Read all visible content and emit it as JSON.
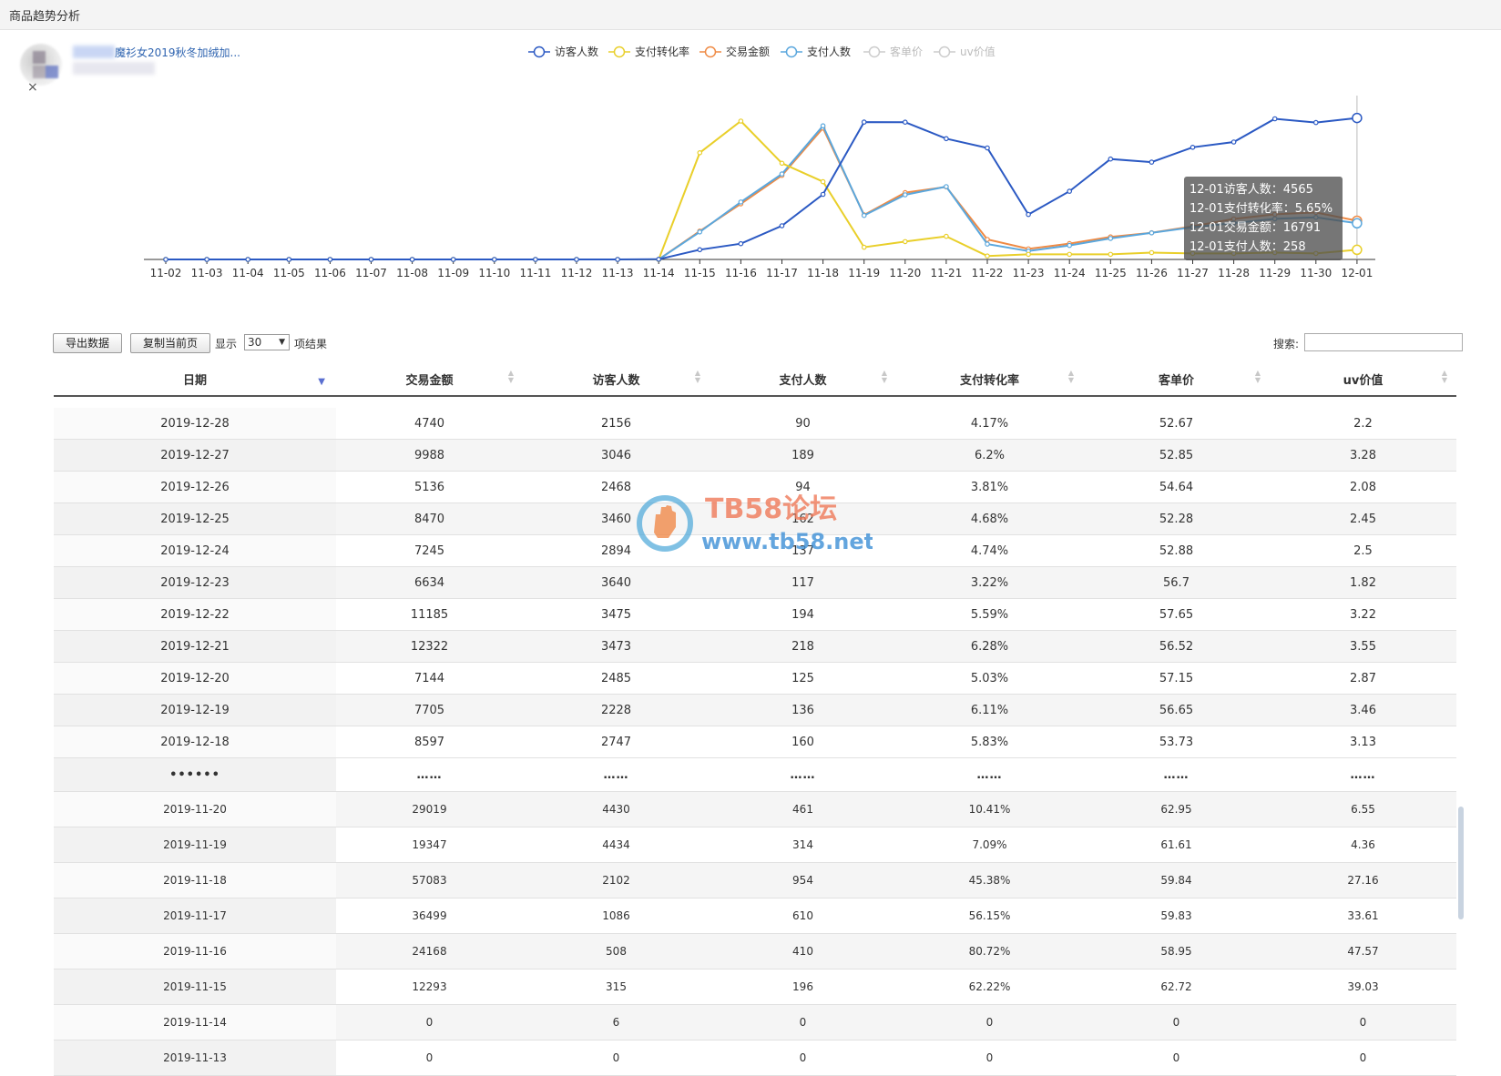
{
  "window": {
    "title": "商品趋势分析"
  },
  "product": {
    "name": "魔衫女2019秋冬加绒加...",
    "close_label": "×"
  },
  "legend": [
    {
      "label": "访客人数",
      "color": "#2b59c3",
      "active": true
    },
    {
      "label": "支付转化率",
      "color": "#e9cf2a",
      "active": true
    },
    {
      "label": "交易金额",
      "color": "#ef8a44",
      "active": true
    },
    {
      "label": "支付人数",
      "color": "#5aa7dd",
      "active": true
    },
    {
      "label": "客单价",
      "color": "#cccccc",
      "active": false
    },
    {
      "label": "uv价值",
      "color": "#cccccc",
      "active": false
    }
  ],
  "chart_data": {
    "type": "line",
    "categories": [
      "11-02",
      "11-03",
      "11-04",
      "11-05",
      "11-06",
      "11-07",
      "11-08",
      "11-09",
      "11-10",
      "11-11",
      "11-12",
      "11-13",
      "11-14",
      "11-15",
      "11-16",
      "11-17",
      "11-18",
      "11-19",
      "11-20",
      "11-21",
      "11-22",
      "11-23",
      "11-24",
      "11-25",
      "11-26",
      "11-27",
      "11-28",
      "11-29",
      "11-30",
      "12-01"
    ],
    "y_axis_visible": false,
    "series": [
      {
        "name": "访客人数",
        "color": "#2b59c3",
        "scale": 5200,
        "values": [
          0,
          0,
          0,
          0,
          0,
          0,
          0,
          0,
          0,
          0,
          0,
          0,
          6,
          315,
          508,
          1086,
          2102,
          4434,
          4430,
          3900,
          3600,
          1450,
          2200,
          3240,
          3140,
          3620,
          3790,
          4540,
          4420,
          4565
        ]
      },
      {
        "name": "支付转化率",
        "color": "#e9cf2a",
        "scale": 94,
        "values": [
          0,
          0,
          0,
          0,
          0,
          0,
          0,
          0,
          0,
          0,
          0,
          0,
          0,
          62.22,
          80.72,
          56.15,
          45.38,
          7.09,
          10.41,
          13.5,
          2,
          3,
          3,
          3,
          4,
          3.5,
          3.5,
          4,
          3.5,
          5.65
        ]
      },
      {
        "name": "交易金额",
        "color": "#ef8a44",
        "scale": 70000,
        "values": [
          0,
          0,
          0,
          0,
          0,
          0,
          0,
          0,
          0,
          0,
          0,
          0,
          0,
          12293,
          24168,
          36499,
          57083,
          19347,
          29019,
          31500,
          8700,
          4600,
          6900,
          9800,
          11600,
          14400,
          17600,
          19600,
          20400,
          16791
        ]
      },
      {
        "name": "支付人数",
        "color": "#5aa7dd",
        "scale": 1150,
        "values": [
          0,
          0,
          0,
          0,
          0,
          0,
          0,
          0,
          0,
          0,
          0,
          0,
          0,
          196,
          410,
          610,
          954,
          314,
          461,
          520,
          110,
          60,
          100,
          150,
          190,
          230,
          260,
          290,
          300,
          258
        ]
      }
    ],
    "tooltip": {
      "lines": [
        "12-01访客人数：4565",
        "12-01支付转化率：5.65%",
        "12-01交易金额：16791",
        "12-01支付人数：258"
      ]
    }
  },
  "toolbar": {
    "export_label": "导出数据",
    "copy_label": "复制当前页",
    "show_label": "显示",
    "page_size": "30",
    "results_label": "项结果",
    "search_label": "搜索:"
  },
  "table": {
    "headers": [
      "日期",
      "交易金额",
      "访客人数",
      "支付人数",
      "支付转化率",
      "客单价",
      "uv价值"
    ],
    "rows_top": [
      [
        "2019-12-28",
        "4740",
        "2156",
        "90",
        "4.17%",
        "52.67",
        "2.2"
      ],
      [
        "2019-12-27",
        "9988",
        "3046",
        "189",
        "6.2%",
        "52.85",
        "3.28"
      ],
      [
        "2019-12-26",
        "5136",
        "2468",
        "94",
        "3.81%",
        "54.64",
        "2.08"
      ],
      [
        "2019-12-25",
        "8470",
        "3460",
        "162",
        "4.68%",
        "52.28",
        "2.45"
      ],
      [
        "2019-12-24",
        "7245",
        "2894",
        "137",
        "4.74%",
        "52.88",
        "2.5"
      ],
      [
        "2019-12-23",
        "6634",
        "3640",
        "117",
        "3.22%",
        "56.7",
        "1.82"
      ],
      [
        "2019-12-22",
        "11185",
        "3475",
        "194",
        "5.59%",
        "57.65",
        "3.22"
      ],
      [
        "2019-12-21",
        "12322",
        "3473",
        "218",
        "6.28%",
        "56.52",
        "3.55"
      ],
      [
        "2019-12-20",
        "7144",
        "2485",
        "125",
        "5.03%",
        "57.15",
        "2.87"
      ],
      [
        "2019-12-19",
        "7705",
        "2228",
        "136",
        "6.11%",
        "56.65",
        "3.46"
      ],
      [
        "2019-12-18",
        "8597",
        "2747",
        "160",
        "5.83%",
        "53.73",
        "3.13"
      ]
    ],
    "ellipsis": [
      "••••••",
      "……",
      "……",
      "……",
      "……",
      "……",
      "……"
    ],
    "rows_bottom": [
      [
        "2019-11-20",
        "29019",
        "4430",
        "461",
        "10.41%",
        "62.95",
        "6.55"
      ],
      [
        "2019-11-19",
        "19347",
        "4434",
        "314",
        "7.09%",
        "61.61",
        "4.36"
      ],
      [
        "2019-11-18",
        "57083",
        "2102",
        "954",
        "45.38%",
        "59.84",
        "27.16"
      ],
      [
        "2019-11-17",
        "36499",
        "1086",
        "610",
        "56.15%",
        "59.83",
        "33.61"
      ],
      [
        "2019-11-16",
        "24168",
        "508",
        "410",
        "80.72%",
        "58.95",
        "47.57"
      ],
      [
        "2019-11-15",
        "12293",
        "315",
        "196",
        "62.22%",
        "62.72",
        "39.03"
      ],
      [
        "2019-11-14",
        "0",
        "6",
        "0",
        "0",
        "0",
        "0"
      ],
      [
        "2019-11-13",
        "0",
        "0",
        "0",
        "0",
        "0",
        "0"
      ]
    ]
  },
  "watermark": {
    "title": "TB58论坛",
    "url": "www.tb58.net"
  }
}
